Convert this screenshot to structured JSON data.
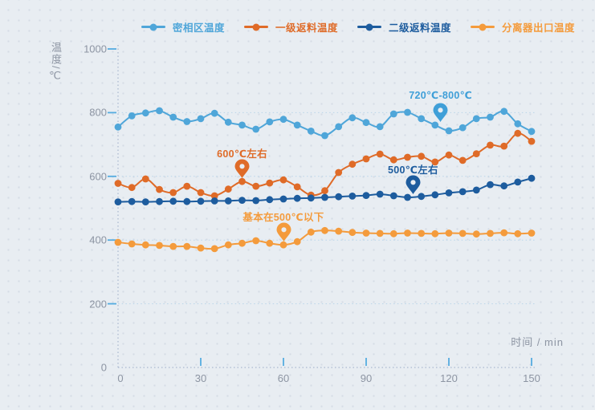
{
  "page": {
    "background": "#e8edf2",
    "dot_color": "#d5dce5"
  },
  "legend": {
    "items": [
      {
        "label": "密相区温度",
        "color": "#4fa6d9"
      },
      {
        "label": "一级返料温度",
        "color": "#df6b28"
      },
      {
        "label": "二级返料温度",
        "color": "#1d5c9e"
      },
      {
        "label": "分离器出口温度",
        "color": "#f49b3c"
      }
    ]
  },
  "chart_data": {
    "type": "line",
    "title": "",
    "xlabel": "时间 / min",
    "ylabel": "温度/℃",
    "xlim": [
      0,
      150
    ],
    "ylim": [
      0,
      1000
    ],
    "x_ticks": [
      0,
      30,
      60,
      90,
      120,
      150
    ],
    "y_ticks": [
      0,
      200,
      400,
      600,
      800,
      1000
    ],
    "grid_y": [
      200,
      400,
      600,
      800
    ],
    "grid_style": "dotted",
    "legend_position": "top",
    "axis_color": "#9aaac6",
    "grid_color": "#b9d5e9",
    "tick_color": "#55ace0",
    "label_color": "#8d95a3",
    "x": [
      0,
      5,
      10,
      15,
      20,
      25,
      30,
      35,
      40,
      45,
      50,
      55,
      60,
      65,
      70,
      75,
      80,
      85,
      90,
      95,
      100,
      105,
      110,
      115,
      120,
      125,
      130,
      135,
      140,
      145,
      150
    ],
    "series": [
      {
        "name": "密相区温度",
        "color": "#4fa6d9",
        "values": [
          755,
          790,
          799,
          806,
          786,
          772,
          781,
          798,
          770,
          761,
          748,
          771,
          779,
          761,
          742,
          728,
          756,
          784,
          769,
          756,
          796,
          801,
          781,
          761,
          743,
          753,
          781,
          786,
          804,
          765,
          741
        ]
      },
      {
        "name": "一级返料温度",
        "color": "#df6b28",
        "values": [
          578,
          565,
          592,
          559,
          549,
          569,
          549,
          539,
          560,
          584,
          569,
          579,
          589,
          567,
          541,
          555,
          612,
          638,
          655,
          670,
          652,
          660,
          663,
          645,
          667,
          650,
          671,
          698,
          695,
          735,
          710
        ]
      },
      {
        "name": "二级返料温度",
        "color": "#1d5c9e",
        "values": [
          520,
          521,
          520,
          521,
          522,
          521,
          522,
          523,
          523,
          525,
          524,
          527,
          529,
          531,
          532,
          534,
          536,
          538,
          540,
          544,
          539,
          534,
          537,
          542,
          548,
          552,
          557,
          574,
          570,
          582,
          594
        ]
      },
      {
        "name": "分离器出口温度",
        "color": "#f49b3c",
        "values": [
          393,
          388,
          385,
          383,
          380,
          380,
          375,
          373,
          385,
          390,
          398,
          390,
          385,
          395,
          425,
          430,
          428,
          424,
          422,
          421,
          420,
          422,
          421,
          420,
          422,
          421,
          419,
          421,
          423,
          420,
          422
        ]
      }
    ],
    "annotations": [
      {
        "text": "600℃左右",
        "color": "#df6b28",
        "x": 45,
        "y": 588
      },
      {
        "text": "720℃-800℃",
        "color": "#3f9fd8",
        "x": 117,
        "y": 764
      },
      {
        "text": "500℃左右",
        "color": "#1d5c9e",
        "x": 107,
        "y": 537
      },
      {
        "text": "基本在500℃以下",
        "color": "#f49b3c",
        "x": 60,
        "y": 389
      }
    ]
  }
}
